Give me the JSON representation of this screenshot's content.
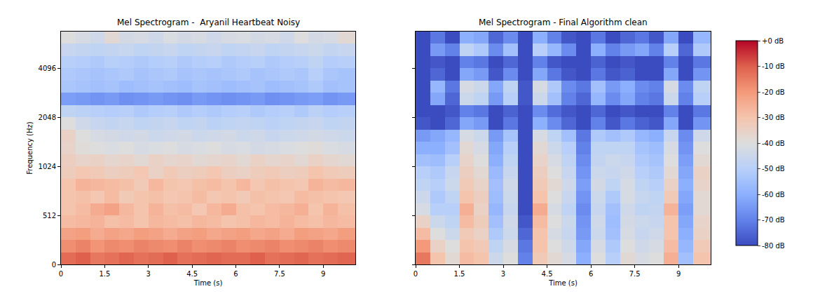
{
  "chart_data": [
    {
      "type": "heatmap",
      "title": "Mel Spectrogram -  Aryanil Heartbeat Noisy",
      "x_label": "Time (s)",
      "y_label": "Frequency (Hz)",
      "x": [
        0,
        0.5,
        1,
        1.5,
        2,
        2.5,
        3,
        3.5,
        4,
        4.5,
        5,
        5.5,
        6,
        6.5,
        7,
        7.5,
        8,
        8.5,
        9,
        9.5,
        10.1
      ],
      "y": [
        0,
        128,
        256,
        384,
        512,
        609,
        724,
        861,
        1024,
        1218,
        1448,
        1722,
        2048,
        2435,
        2896,
        3444,
        4096,
        4871,
        5793,
        6889
      ],
      "xlim": [
        0,
        10.1
      ],
      "ylim": [
        0,
        6889
      ],
      "xticks": [
        0,
        1.5,
        3,
        4.5,
        6,
        7.5,
        9
      ],
      "yticks": [
        0,
        512,
        1024,
        2048,
        4096
      ],
      "zlim": [
        -80,
        0
      ],
      "values": [
        [
          -12,
          -10,
          -14,
          -13,
          -11,
          -13,
          -12,
          -10,
          -13,
          -12,
          -11,
          -12,
          -12,
          -10,
          -13,
          -12,
          -11,
          -13,
          -12,
          -11
        ],
        [
          -18,
          -16,
          -19,
          -17,
          -18,
          -16,
          -17,
          -18,
          -16,
          -18,
          -17,
          -16,
          -18,
          -17,
          -16,
          -18,
          -17,
          -16,
          -18,
          -17
        ],
        [
          -22,
          -21,
          -24,
          -22,
          -23,
          -21,
          -22,
          -24,
          -22,
          -21,
          -23,
          -22,
          -21,
          -23,
          -22,
          -24,
          -21,
          -22,
          -23,
          -21
        ],
        [
          -28,
          -27,
          -26,
          -29,
          -28,
          -30,
          -27,
          -28,
          -29,
          -27,
          -28,
          -30,
          -29,
          -27,
          -28,
          -26,
          -28,
          -29,
          -27,
          -28
        ],
        [
          -30,
          -28,
          -24,
          -22,
          -27,
          -30,
          -26,
          -29,
          -28,
          -31,
          -27,
          -24,
          -29,
          -30,
          -28,
          -27,
          -25,
          -30,
          -26,
          -29
        ],
        [
          -30,
          -29,
          -31,
          -28,
          -32,
          -30,
          -29,
          -31,
          -30,
          -28,
          -31,
          -30,
          -32,
          -29,
          -30,
          -31,
          -28,
          -29,
          -30,
          -31
        ],
        [
          -30,
          -26,
          -27,
          -28,
          -29,
          -32,
          -27,
          -30,
          -31,
          -29,
          -28,
          -30,
          -27,
          -31,
          -29,
          -30,
          -31,
          -26,
          -28,
          -27
        ],
        [
          -33,
          -31,
          -32,
          -34,
          -33,
          -31,
          -35,
          -32,
          -34,
          -33,
          -31,
          -34,
          -35,
          -33,
          -32,
          -34,
          -33,
          -30,
          -32,
          -33
        ],
        [
          -34,
          -36,
          -35,
          -37,
          -36,
          -38,
          -35,
          -37,
          -36,
          -38,
          -37,
          -36,
          -38,
          -35,
          -37,
          -36,
          -38,
          -35,
          -37,
          -38
        ],
        [
          -36,
          -39,
          -40,
          -41,
          -40,
          -42,
          -41,
          -40,
          -42,
          -41,
          -40,
          -42,
          -41,
          -43,
          -42,
          -41,
          -40,
          -39,
          -41,
          -42
        ],
        [
          -35,
          -40,
          -42,
          -43,
          -44,
          -43,
          -45,
          -44,
          -43,
          -45,
          -44,
          -43,
          -45,
          -44,
          -46,
          -45,
          -44,
          -43,
          -44,
          -45
        ],
        [
          -40,
          -44,
          -46,
          -47,
          -46,
          -48,
          -47,
          -46,
          -48,
          -47,
          -49,
          -48,
          -47,
          -48,
          -49,
          -48,
          -47,
          -46,
          -48,
          -47
        ],
        [
          -48,
          -49,
          -50,
          -51,
          -50,
          -52,
          -51,
          -50,
          -52,
          -51,
          -52,
          -51,
          -50,
          -52,
          -51,
          -50,
          -52,
          -49,
          -51,
          -50
        ],
        [
          -64,
          -65,
          -66,
          -65,
          -67,
          -66,
          -65,
          -66,
          -67,
          -65,
          -66,
          -67,
          -66,
          -65,
          -67,
          -66,
          -65,
          -64,
          -66,
          -65
        ],
        [
          -53,
          -54,
          -55,
          -54,
          -56,
          -55,
          -54,
          -55,
          -56,
          -54,
          -55,
          -56,
          -55,
          -54,
          -56,
          -55,
          -54,
          -52,
          -55,
          -54
        ],
        [
          -52,
          -53,
          -54,
          -53,
          -52,
          -54,
          -53,
          -52,
          -54,
          -53,
          -54,
          -53,
          -52,
          -54,
          -53,
          -52,
          -53,
          -50,
          -53,
          -54
        ],
        [
          -50,
          -51,
          -52,
          -50,
          -51,
          -52,
          -51,
          -50,
          -52,
          -51,
          -50,
          -52,
          -51,
          -50,
          -52,
          -51,
          -50,
          -48,
          -51,
          -50
        ],
        [
          -46,
          -47,
          -48,
          -47,
          -46,
          -48,
          -47,
          -46,
          -48,
          -47,
          -46,
          -48,
          -47,
          -46,
          -48,
          -47,
          -46,
          -45,
          -47,
          -46
        ],
        [
          -40,
          -42,
          -44,
          -38,
          -43,
          -42,
          -44,
          -41,
          -43,
          -42,
          -44,
          -42,
          -41,
          -43,
          -42,
          -44,
          -40,
          -43,
          -42,
          -38
        ]
      ]
    },
    {
      "type": "heatmap",
      "title": "Mel Spectrogram - Final Algorithm clean",
      "x_label": "Time (s)",
      "x": [
        0,
        0.5,
        1,
        1.5,
        2,
        2.5,
        3,
        3.5,
        4,
        4.5,
        5,
        5.5,
        6,
        6.5,
        7,
        7.5,
        8,
        8.5,
        9,
        9.5,
        10.1
      ],
      "y": [
        0,
        128,
        256,
        384,
        512,
        609,
        724,
        861,
        1024,
        1218,
        1448,
        1722,
        2048,
        2435,
        2896,
        3444,
        4096,
        4871,
        5793,
        6889
      ],
      "xlim": [
        0,
        10.1
      ],
      "ylim": [
        0,
        6889
      ],
      "xticks": [
        0,
        1.5,
        3,
        4.5,
        6,
        7.5,
        9
      ],
      "yticks": [
        0,
        512,
        1024,
        2048,
        4096
      ],
      "tick_labels": "x",
      "zlim": [
        -80,
        0
      ],
      "zticks": [
        {
          "value": 0,
          "label": "+0 dB"
        },
        {
          "value": -10,
          "label": "-10 dB"
        },
        {
          "value": -20,
          "label": "-20 dB"
        },
        {
          "value": -30,
          "label": "-30 dB"
        },
        {
          "value": -40,
          "label": "-40 dB"
        },
        {
          "value": -50,
          "label": "-50 dB"
        },
        {
          "value": -60,
          "label": "-60 dB"
        },
        {
          "value": -70,
          "label": "-70 dB"
        },
        {
          "value": -80,
          "label": "-80 dB"
        }
      ],
      "values": [
        [
          -14,
          -30,
          -38,
          -28,
          -30,
          -45,
          -40,
          -70,
          -32,
          -38,
          -42,
          -60,
          -40,
          -50,
          -38,
          -42,
          -40,
          -25,
          -55,
          -30
        ],
        [
          -20,
          -35,
          -40,
          -30,
          -32,
          -48,
          -42,
          -72,
          -30,
          -40,
          -44,
          -62,
          -42,
          -52,
          -40,
          -44,
          -42,
          -28,
          -58,
          -32
        ],
        [
          -28,
          -40,
          -45,
          -32,
          -35,
          -52,
          -45,
          -75,
          -30,
          -42,
          -46,
          -65,
          -45,
          -55,
          -42,
          -46,
          -44,
          -30,
          -60,
          -35
        ],
        [
          -35,
          -45,
          -48,
          -28,
          -33,
          -55,
          -44,
          -78,
          -28,
          -40,
          -45,
          -66,
          -44,
          -56,
          -43,
          -45,
          -46,
          -30,
          -62,
          -36
        ],
        [
          -42,
          -50,
          -50,
          -25,
          -35,
          -58,
          -46,
          -80,
          -24,
          -42,
          -48,
          -68,
          -46,
          -55,
          -44,
          -48,
          -47,
          -26,
          -64,
          -38
        ],
        [
          -45,
          -52,
          -48,
          -30,
          -34,
          -56,
          -45,
          -80,
          -30,
          -40,
          -46,
          -66,
          -45,
          -52,
          -42,
          -46,
          -48,
          -32,
          -62,
          -38
        ],
        [
          -48,
          -50,
          -45,
          -32,
          -36,
          -55,
          -44,
          -80,
          -32,
          -38,
          -44,
          -64,
          -43,
          -48,
          -42,
          -48,
          -50,
          -35,
          -60,
          -36
        ],
        [
          -50,
          -52,
          -46,
          -34,
          -38,
          -57,
          -46,
          -80,
          -34,
          -40,
          -46,
          -66,
          -45,
          -46,
          -44,
          -50,
          -52,
          -38,
          -62,
          -35
        ],
        [
          -55,
          -56,
          -50,
          -36,
          -40,
          -60,
          -48,
          -80,
          -36,
          -42,
          -48,
          -68,
          -47,
          -45,
          -46,
          -52,
          -54,
          -40,
          -64,
          -38
        ],
        [
          -60,
          -60,
          -55,
          -38,
          -42,
          -62,
          -50,
          -80,
          -38,
          -45,
          -50,
          -70,
          -48,
          -48,
          -48,
          -54,
          -56,
          -42,
          -66,
          -40
        ],
        [
          -65,
          -62,
          -58,
          -42,
          -45,
          -65,
          -54,
          -80,
          -42,
          -48,
          -55,
          -72,
          -52,
          -55,
          -52,
          -58,
          -60,
          -46,
          -68,
          -44
        ],
        [
          -78,
          -80,
          -75,
          -62,
          -65,
          -80,
          -72,
          -80,
          -60,
          -68,
          -75,
          -80,
          -70,
          -78,
          -72,
          -76,
          -78,
          -62,
          -80,
          -66
        ],
        [
          -80,
          -80,
          -78,
          -70,
          -72,
          -80,
          -76,
          -80,
          -68,
          -74,
          -78,
          -80,
          -75,
          -80,
          -78,
          -80,
          -80,
          -70,
          -80,
          -72
        ],
        [
          -80,
          -62,
          -75,
          -45,
          -48,
          -65,
          -50,
          -78,
          -45,
          -55,
          -70,
          -75,
          -58,
          -68,
          -62,
          -70,
          -72,
          -45,
          -70,
          -50
        ],
        [
          -80,
          -58,
          -72,
          -42,
          -45,
          -62,
          -48,
          -78,
          -42,
          -52,
          -68,
          -72,
          -55,
          -65,
          -60,
          -68,
          -70,
          -42,
          -68,
          -48
        ],
        [
          -80,
          -75,
          -80,
          -62,
          -65,
          -78,
          -68,
          -80,
          -62,
          -72,
          -78,
          -80,
          -72,
          -78,
          -76,
          -80,
          -80,
          -62,
          -80,
          -66
        ],
        [
          -80,
          -78,
          -80,
          -70,
          -72,
          -80,
          -75,
          -80,
          -70,
          -78,
          -80,
          -80,
          -76,
          -80,
          -78,
          -80,
          -80,
          -70,
          -80,
          -72
        ],
        [
          -80,
          -65,
          -70,
          -48,
          -52,
          -68,
          -55,
          -80,
          -50,
          -58,
          -68,
          -80,
          -60,
          -70,
          -65,
          -62,
          -70,
          -50,
          -75,
          -52
        ],
        [
          -80,
          -72,
          -80,
          -60,
          -62,
          -75,
          -68,
          -80,
          -60,
          -70,
          -78,
          -80,
          -72,
          -80,
          -75,
          -72,
          -78,
          -62,
          -80,
          -58
        ]
      ]
    }
  ]
}
